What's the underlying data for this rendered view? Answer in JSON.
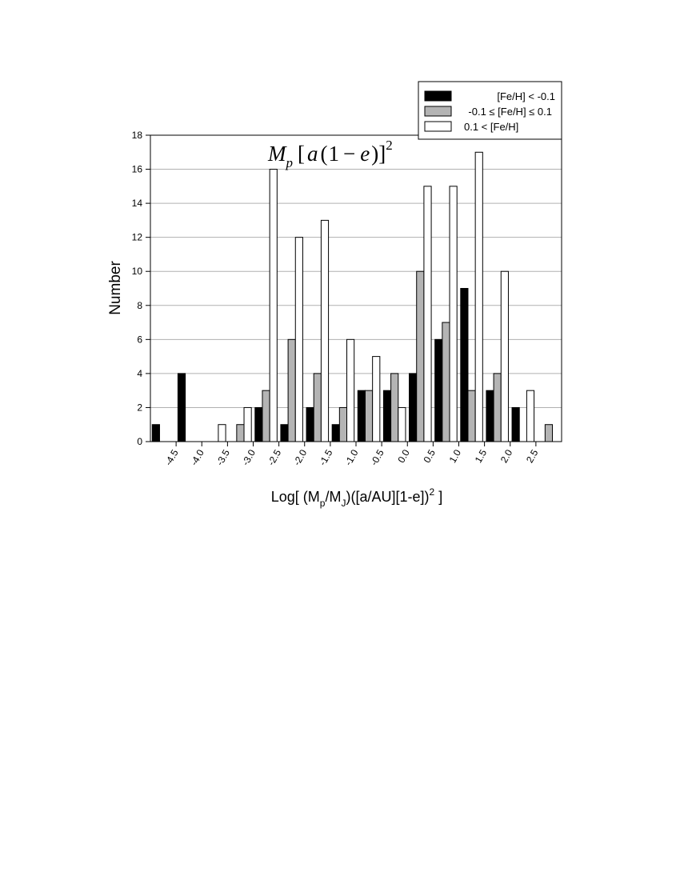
{
  "chart_data": {
    "type": "bar",
    "title_math": {
      "mass": "M",
      "mass_sub": "p",
      "open": "[",
      "a": "a",
      "paren_open": "(",
      "one": "1",
      "minus": "−",
      "e": "e",
      "paren_close": ")",
      "close": "]",
      "power": "2"
    },
    "ylabel": "Number",
    "xlabel": {
      "part1": "Log[ (M",
      "sub_p": "p",
      "part2": "/M",
      "sub_j": "J",
      "part3": ")([a/AU][1-e])",
      "sup": "2",
      "part4": " ]"
    },
    "ylim": [
      0,
      18
    ],
    "yticks": [
      0,
      2,
      4,
      6,
      8,
      10,
      12,
      14,
      16,
      18
    ],
    "xlim": [
      -5.0,
      3.0
    ],
    "xticks": [
      -4.5,
      -4.0,
      -3.5,
      -3.0,
      -2.5,
      -2.0,
      -1.5,
      -1.0,
      -0.5,
      0.0,
      0.5,
      1.0,
      1.5,
      2.0,
      2.5
    ],
    "xtick_labels": [
      "-4.5",
      "-4.0",
      "-3.5",
      "-3.0",
      "-2.5",
      "-2.0",
      "-1.5",
      "-1.0",
      "-0.5",
      "0.0",
      "0.5",
      "1.0",
      "1.5",
      "2.0",
      "2.5"
    ],
    "bin_centers": [
      -4.75,
      -4.25,
      -3.75,
      -3.25,
      -2.75,
      -2.25,
      -1.75,
      -1.25,
      -0.75,
      -0.25,
      0.25,
      0.75,
      1.25,
      1.75,
      2.25,
      2.75
    ],
    "grid": true,
    "legend_placement": "top-right outside",
    "series": [
      {
        "name": "[Fe/H] < -0.1",
        "color": "#000000",
        "values": [
          1,
          4,
          0,
          0,
          2,
          1,
          2,
          1,
          3,
          3,
          4,
          6,
          9,
          3,
          2,
          0
        ]
      },
      {
        "name": "-0.1 ≤ [Fe/H] ≤ 0.1",
        "color": "#b4b4b4",
        "values": [
          0,
          0,
          0,
          1,
          3,
          6,
          4,
          2,
          3,
          4,
          10,
          7,
          3,
          4,
          0,
          1
        ]
      },
      {
        "name": "0.1 < [Fe/H]",
        "color": "#ffffff",
        "values": [
          0,
          0,
          1,
          2,
          16,
          12,
          13,
          6,
          5,
          2,
          15,
          15,
          17,
          10,
          3,
          0
        ]
      }
    ]
  }
}
